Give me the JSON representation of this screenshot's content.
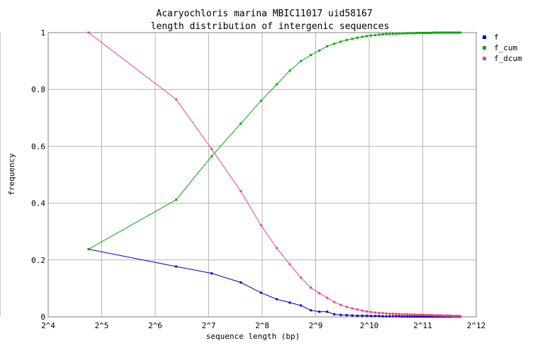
{
  "chart_data": {
    "type": "line",
    "title": "Acaryochloris marina MBIC11017 uid58167",
    "subtitle": "length distribution of intergenic sequences",
    "xlabel": "sequence length (bp)",
    "ylabel": "frequency",
    "xscale": "log2",
    "xlim": [
      16,
      4096
    ],
    "ylim": [
      0,
      1
    ],
    "x_tick_labels": [
      "2^4",
      "2^5",
      "2^6",
      "2^7",
      "2^8",
      "2^9",
      "2^10",
      "2^11",
      "2^12"
    ],
    "y_tick_labels": [
      "0",
      "0.2",
      "0.4",
      "0.6",
      "0.8",
      "1"
    ],
    "grid": true,
    "legend_position": "right",
    "series": [
      {
        "name": "f",
        "color": "#0000cc",
        "x": [
          27,
          84,
          133,
          194,
          252,
          309,
          366,
          423,
          480,
          537,
          594,
          651,
          708,
          765,
          822,
          879,
          936,
          993,
          1050,
          1107,
          1164,
          1221,
          1278,
          1335,
          1392,
          1449,
          1506,
          1563,
          1620,
          1677,
          1734,
          1791,
          1848,
          1905,
          1962,
          2019,
          2076,
          2133,
          2190,
          2247,
          2304,
          2361,
          2418,
          2475,
          2532,
          2589,
          2646,
          2703,
          2760,
          2817,
          2874,
          2931,
          2988,
          3045,
          3102,
          3159,
          3216,
          3273,
          3330
        ],
        "y": [
          0.238,
          0.177,
          0.153,
          0.121,
          0.085,
          0.062,
          0.05,
          0.04,
          0.023,
          0.018,
          0.018,
          0.009,
          0.007,
          0.006,
          0.005,
          0.004,
          0.004,
          0.004,
          0.003,
          0.003,
          0.003,
          0.002,
          0.002,
          0.002,
          0.002,
          0.002,
          0.002,
          0.001,
          0.001,
          0.001,
          0.001,
          0.001,
          0.001,
          0.001,
          0.001,
          0.001,
          0.001,
          0.001,
          0.001,
          0.001,
          0.001,
          0.001,
          0.001,
          0.001,
          0.001,
          0.001,
          0.001,
          0.001,
          0.001,
          0.001,
          0.001,
          0.001,
          0.001,
          0.001,
          0.001,
          0.001,
          0.001,
          0.001,
          0.001
        ]
      },
      {
        "name": "f_cum",
        "color": "#00aa00",
        "x": [
          27,
          84,
          133,
          194,
          252,
          309,
          366,
          423,
          480,
          537,
          594,
          651,
          708,
          765,
          822,
          879,
          936,
          993,
          1050,
          1107,
          1164,
          1221,
          1278,
          1335,
          1392,
          1449,
          1506,
          1563,
          1620,
          1677,
          1734,
          1791,
          1848,
          1905,
          1962,
          2019,
          2076,
          2133,
          2190,
          2247,
          2304,
          2361,
          2418,
          2475,
          2532,
          2589,
          2646,
          2703,
          2760,
          2817,
          2874,
          2931,
          2988,
          3045,
          3102,
          3159,
          3216,
          3273,
          3330
        ],
        "y": [
          0.238,
          0.412,
          0.565,
          0.68,
          0.76,
          0.818,
          0.866,
          0.9,
          0.921,
          0.937,
          0.952,
          0.961,
          0.968,
          0.974,
          0.978,
          0.982,
          0.985,
          0.988,
          0.99,
          0.991,
          0.993,
          0.994,
          0.995,
          0.995,
          0.996,
          0.996,
          0.997,
          0.997,
          0.997,
          0.998,
          0.998,
          0.998,
          0.998,
          0.999,
          0.999,
          0.999,
          0.999,
          0.999,
          0.999,
          0.999,
          0.999,
          1.0,
          1.0,
          1.0,
          1.0,
          1.0,
          1.0,
          1.0,
          1.0,
          1.0,
          1.0,
          1.0,
          1.0,
          1.0,
          1.0,
          1.0,
          1.0,
          1.0,
          1.0
        ]
      },
      {
        "name": "f_dcum",
        "color": "#ee4477",
        "x": [
          27,
          84,
          133,
          194,
          252,
          309,
          366,
          423,
          480,
          537,
          594,
          651,
          708,
          765,
          822,
          879,
          936,
          993,
          1050,
          1107,
          1164,
          1221,
          1278,
          1335,
          1392,
          1449,
          1506,
          1563,
          1620,
          1677,
          1734,
          1791,
          1848,
          1905,
          1962,
          2019,
          2076,
          2133,
          2190,
          2247,
          2304,
          2361,
          2418,
          2475,
          2532,
          2589,
          2646,
          2703,
          2760,
          2817,
          2874,
          2931,
          2988,
          3045,
          3102,
          3159,
          3216,
          3273,
          3330
        ],
        "y": [
          1.0,
          0.765,
          0.59,
          0.442,
          0.322,
          0.242,
          0.185,
          0.138,
          0.103,
          0.083,
          0.067,
          0.052,
          0.042,
          0.035,
          0.03,
          0.026,
          0.022,
          0.019,
          0.017,
          0.015,
          0.014,
          0.013,
          0.012,
          0.011,
          0.011,
          0.01,
          0.01,
          0.009,
          0.009,
          0.009,
          0.008,
          0.008,
          0.008,
          0.007,
          0.007,
          0.007,
          0.007,
          0.006,
          0.006,
          0.006,
          0.006,
          0.005,
          0.005,
          0.005,
          0.005,
          0.005,
          0.004,
          0.004,
          0.004,
          0.004,
          0.004,
          0.004,
          0.003,
          0.003,
          0.003,
          0.003,
          0.003,
          0.003,
          0.003
        ]
      }
    ]
  }
}
